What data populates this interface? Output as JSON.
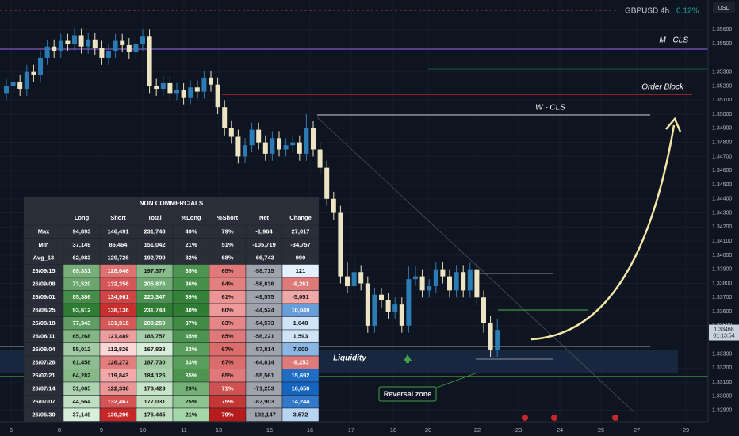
{
  "header": {
    "symbol": "GBPUSD 4h",
    "change": "0.12%",
    "currency": "USD"
  },
  "chart": {
    "type": "candlestick",
    "ylim": [
      1.3283,
      1.3581
    ],
    "yticks": [
      {
        "value": 1.356,
        "label": "1.35600"
      },
      {
        "value": 1.355,
        "label": "1.35500"
      },
      {
        "value": 1.353,
        "label": "1.35300"
      },
      {
        "value": 1.352,
        "label": "1.35200"
      },
      {
        "value": 1.351,
        "label": "1.35100"
      },
      {
        "value": 1.35,
        "label": "1.35000"
      },
      {
        "value": 1.349,
        "label": "1.34900"
      },
      {
        "value": 1.348,
        "label": "1.34800"
      },
      {
        "value": 1.347,
        "label": "1.34700"
      },
      {
        "value": 1.346,
        "label": "1.34600"
      },
      {
        "value": 1.345,
        "label": "1.34500"
      },
      {
        "value": 1.344,
        "label": "1.34400"
      },
      {
        "value": 1.343,
        "label": "1.34300"
      },
      {
        "value": 1.342,
        "label": "1.34200"
      },
      {
        "value": 1.341,
        "label": "1.34100"
      },
      {
        "value": 1.34,
        "label": "1.34000"
      },
      {
        "value": 1.339,
        "label": "1.33900"
      },
      {
        "value": 1.338,
        "label": "1.33800"
      },
      {
        "value": 1.337,
        "label": "1.33700"
      },
      {
        "value": 1.336,
        "label": "1.33600"
      },
      {
        "value": 1.335,
        "label": "1.33500"
      },
      {
        "value": 1.333,
        "label": "1.33300"
      },
      {
        "value": 1.332,
        "label": "1.33200"
      },
      {
        "value": 1.331,
        "label": "1.33100"
      },
      {
        "value": 1.33,
        "label": "1.33000"
      },
      {
        "value": 1.329,
        "label": "1.32900"
      }
    ],
    "x_labels": [
      "6",
      "8",
      "9",
      "10",
      "11",
      "13",
      "15",
      "16",
      "17",
      "18",
      "20",
      "22",
      "23",
      "24",
      "25",
      "27",
      "29"
    ],
    "candles": [
      [
        1.3515,
        1.3525,
        1.351,
        1.352
      ],
      [
        1.352,
        1.3528,
        1.3515,
        1.3523
      ],
      [
        1.3523,
        1.3528,
        1.3513,
        1.3518
      ],
      [
        1.3518,
        1.3535,
        1.3513,
        1.353
      ],
      [
        1.353,
        1.3535,
        1.3523,
        1.3528
      ],
      [
        1.3528,
        1.3545,
        1.3523,
        1.354
      ],
      [
        1.354,
        1.3553,
        1.3535,
        1.3548
      ],
      [
        1.3548,
        1.3553,
        1.354,
        1.3545
      ],
      [
        1.3545,
        1.3557,
        1.354,
        1.3552
      ],
      [
        1.3552,
        1.3557,
        1.3545,
        1.355
      ],
      [
        1.355,
        1.3561,
        1.3545,
        1.3556
      ],
      [
        1.3556,
        1.3561,
        1.3543,
        1.3548
      ],
      [
        1.3548,
        1.3558,
        1.3543,
        1.3553
      ],
      [
        1.3553,
        1.3558,
        1.3542,
        1.3547
      ],
      [
        1.3547,
        1.3552,
        1.3535,
        1.354
      ],
      [
        1.354,
        1.355,
        1.3535,
        1.3545
      ],
      [
        1.3545,
        1.3557,
        1.354,
        1.3552
      ],
      [
        1.3552,
        1.3557,
        1.3544,
        1.3549
      ],
      [
        1.3549,
        1.3554,
        1.3539,
        1.3544
      ],
      [
        1.3544,
        1.3555,
        1.3539,
        1.355
      ],
      [
        1.355,
        1.356,
        1.3545,
        1.3555
      ],
      [
        1.3555,
        1.356,
        1.3515,
        1.352
      ],
      [
        1.352,
        1.3525,
        1.3513,
        1.3518
      ],
      [
        1.3518,
        1.3527,
        1.3513,
        1.3522
      ],
      [
        1.3522,
        1.3527,
        1.351,
        1.3515
      ],
      [
        1.3515,
        1.3522,
        1.351,
        1.3517
      ],
      [
        1.3517,
        1.3522,
        1.3507,
        1.3512
      ],
      [
        1.3512,
        1.3524,
        1.3507,
        1.3519
      ],
      [
        1.3519,
        1.3524,
        1.3511,
        1.3516
      ],
      [
        1.3516,
        1.3531,
        1.3511,
        1.3526
      ],
      [
        1.3526,
        1.3531,
        1.3516,
        1.3521
      ],
      [
        1.3521,
        1.3526,
        1.35,
        1.3505
      ],
      [
        1.3505,
        1.351,
        1.3485,
        1.349
      ],
      [
        1.349,
        1.3495,
        1.3479,
        1.3484
      ],
      [
        1.3484,
        1.3489,
        1.3465,
        1.347
      ],
      [
        1.347,
        1.3483,
        1.3465,
        1.3478
      ],
      [
        1.3478,
        1.3494,
        1.3473,
        1.3489
      ],
      [
        1.3489,
        1.3494,
        1.3475,
        1.348
      ],
      [
        1.348,
        1.3485,
        1.3467,
        1.3472
      ],
      [
        1.3472,
        1.3488,
        1.3467,
        1.3483
      ],
      [
        1.3483,
        1.3488,
        1.347,
        1.3475
      ],
      [
        1.3475,
        1.3483,
        1.347,
        1.3478
      ],
      [
        1.3478,
        1.3485,
        1.3473,
        1.348
      ],
      [
        1.348,
        1.3485,
        1.3467,
        1.3472
      ],
      [
        1.3472,
        1.35,
        1.3467,
        1.349
      ],
      [
        1.349,
        1.3495,
        1.347,
        1.3475
      ],
      [
        1.3475,
        1.348,
        1.3457,
        1.3462
      ],
      [
        1.3462,
        1.3467,
        1.3435,
        1.344
      ],
      [
        1.344,
        1.3445,
        1.3425,
        1.343
      ],
      [
        1.343,
        1.3435,
        1.338,
        1.3385
      ],
      [
        1.3385,
        1.3395,
        1.3373,
        1.3378
      ],
      [
        1.3378,
        1.34,
        1.3373,
        1.3388
      ],
      [
        1.3388,
        1.3393,
        1.3375,
        1.338
      ],
      [
        1.338,
        1.3385,
        1.3345,
        1.335
      ],
      [
        1.335,
        1.3377,
        1.3345,
        1.3372
      ],
      [
        1.3372,
        1.3377,
        1.3363,
        1.3368
      ],
      [
        1.3368,
        1.3373,
        1.3355,
        1.336
      ],
      [
        1.336,
        1.337,
        1.3355,
        1.3365
      ],
      [
        1.3365,
        1.337,
        1.3345,
        1.335
      ],
      [
        1.335,
        1.3392,
        1.3345,
        1.3383
      ],
      [
        1.3383,
        1.3392,
        1.3378,
        1.3385
      ],
      [
        1.3385,
        1.339,
        1.337,
        1.3375
      ],
      [
        1.3375,
        1.3383,
        1.337,
        1.3378
      ],
      [
        1.3378,
        1.3395,
        1.3373,
        1.339
      ],
      [
        1.339,
        1.3395,
        1.338,
        1.3385
      ],
      [
        1.3385,
        1.339,
        1.337,
        1.3375
      ],
      [
        1.3375,
        1.3393,
        1.337,
        1.3388
      ],
      [
        1.3388,
        1.3393,
        1.337,
        1.3375
      ],
      [
        1.3375,
        1.3395,
        1.337,
        1.339
      ],
      [
        1.339,
        1.3395,
        1.3365,
        1.337
      ],
      [
        1.337,
        1.3375,
        1.3345,
        1.3352
      ],
      [
        1.3352,
        1.3357,
        1.3328,
        1.3333
      ],
      [
        1.3333,
        1.3355,
        1.3328,
        1.3347
      ]
    ],
    "price": 1.33468,
    "countdown": "01:13:54",
    "colors": {
      "up": "#2b7bb5",
      "down": "#ece4c2"
    }
  },
  "annotations": {
    "m_cls": "M - CLS",
    "order_block": "Order Block",
    "w_cls": "W - CLS",
    "liquidity": "Liquidity",
    "reversal": "Reversal zone"
  },
  "table": {
    "title": "NON COMMERCIALS",
    "columns": [
      "Long",
      "Short",
      "Total",
      "%Long",
      "%Short",
      "Net",
      "Change"
    ],
    "rows": [
      [
        "Max",
        "94,893",
        "146,491",
        "231,748",
        "49%",
        "79%",
        "-1,964",
        "27,017"
      ],
      [
        "Min",
        "37,149",
        "86,464",
        "151,042",
        "21%",
        "51%",
        "-105,719",
        "-34,757"
      ],
      [
        "Avg_13",
        "62,983",
        "129,726",
        "192,709",
        "32%",
        "68%",
        "-66,743",
        "990"
      ],
      [
        "26/09/15",
        "69,331",
        "128,046",
        "197,377",
        "35%",
        "65%",
        "-58,715",
        "121"
      ],
      [
        "26/09/08",
        "73,520",
        "132,356",
        "205,876",
        "36%",
        "64%",
        "-58,836",
        "-9,261"
      ],
      [
        "26/09/01",
        "85,386",
        "134,961",
        "220,347",
        "39%",
        "61%",
        "-49,575",
        "-5,051"
      ],
      [
        "26/08/25",
        "93,612",
        "138,136",
        "231,748",
        "40%",
        "60%",
        "-44,524",
        "10,049"
      ],
      [
        "26/08/18",
        "77,343",
        "131,916",
        "209,259",
        "37%",
        "63%",
        "-54,573",
        "1,648"
      ],
      [
        "26/08/11",
        "65,268",
        "121,489",
        "186,757",
        "35%",
        "65%",
        "-56,221",
        "1,593"
      ],
      [
        "26/08/04",
        "55,012",
        "112,826",
        "167,838",
        "33%",
        "67%",
        "-57,814",
        "7,000"
      ],
      [
        "26/07/28",
        "61,458",
        "126,272",
        "187,730",
        "33%",
        "67%",
        "-64,814",
        "-9,253"
      ],
      [
        "26/07/21",
        "64,282",
        "119,843",
        "184,125",
        "35%",
        "65%",
        "-55,561",
        "15,692"
      ],
      [
        "26/07/14",
        "51,085",
        "122,338",
        "173,423",
        "29%",
        "71%",
        "-71,253",
        "16,650"
      ],
      [
        "26/07/07",
        "44,564",
        "132,467",
        "177,031",
        "25%",
        "75%",
        "-87,903",
        "14,244"
      ],
      [
        "26/06/30",
        "37,149",
        "139,296",
        "176,445",
        "21%",
        "79%",
        "-102,147",
        "3,572"
      ]
    ]
  }
}
